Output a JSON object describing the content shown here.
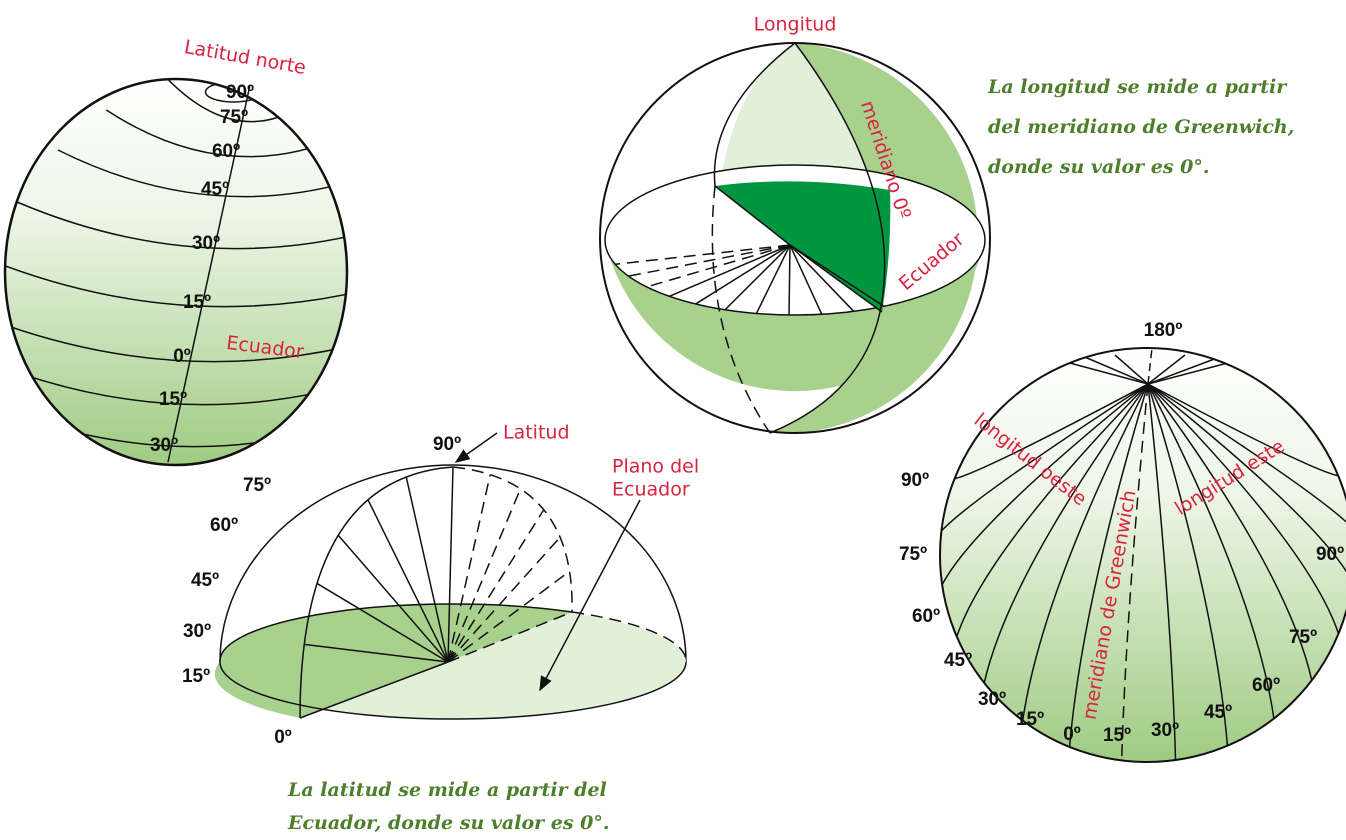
{
  "latitude_globe": {
    "title": "Latitud norte",
    "equator": "Ecuador",
    "ticks": [
      "90º",
      "75º",
      "60º",
      "45º",
      "30º",
      "15º",
      "0º",
      "15º",
      "30º"
    ]
  },
  "latitude_section": {
    "label": "Latitud",
    "plane_label": [
      "Plano del",
      "Ecuador"
    ],
    "ticks": [
      "90º",
      "75º",
      "60º",
      "45º",
      "30º",
      "15º",
      "0º"
    ],
    "caption": [
      "La latitud se mide a partir del",
      "Ecuador, donde su valor es 0°."
    ]
  },
  "longitude_globe": {
    "title": "Longitud",
    "meridian": "meridiano 0º",
    "equator": "Ecuador",
    "caption": [
      "La longitud se mide a partir",
      "del meridiano de Greenwich,",
      "donde su valor es 0°."
    ]
  },
  "meridian_globe": {
    "top": "180º",
    "west": "longitud oeste",
    "east": "longitud este",
    "meridian": "meridiano de Greenwich",
    "west_ticks": [
      "90º",
      "75º",
      "60º",
      "45º",
      "30º",
      "15º",
      "0º"
    ],
    "east_ticks": [
      "15º",
      "30º",
      "45º",
      "60º",
      "75º",
      "90º"
    ]
  }
}
